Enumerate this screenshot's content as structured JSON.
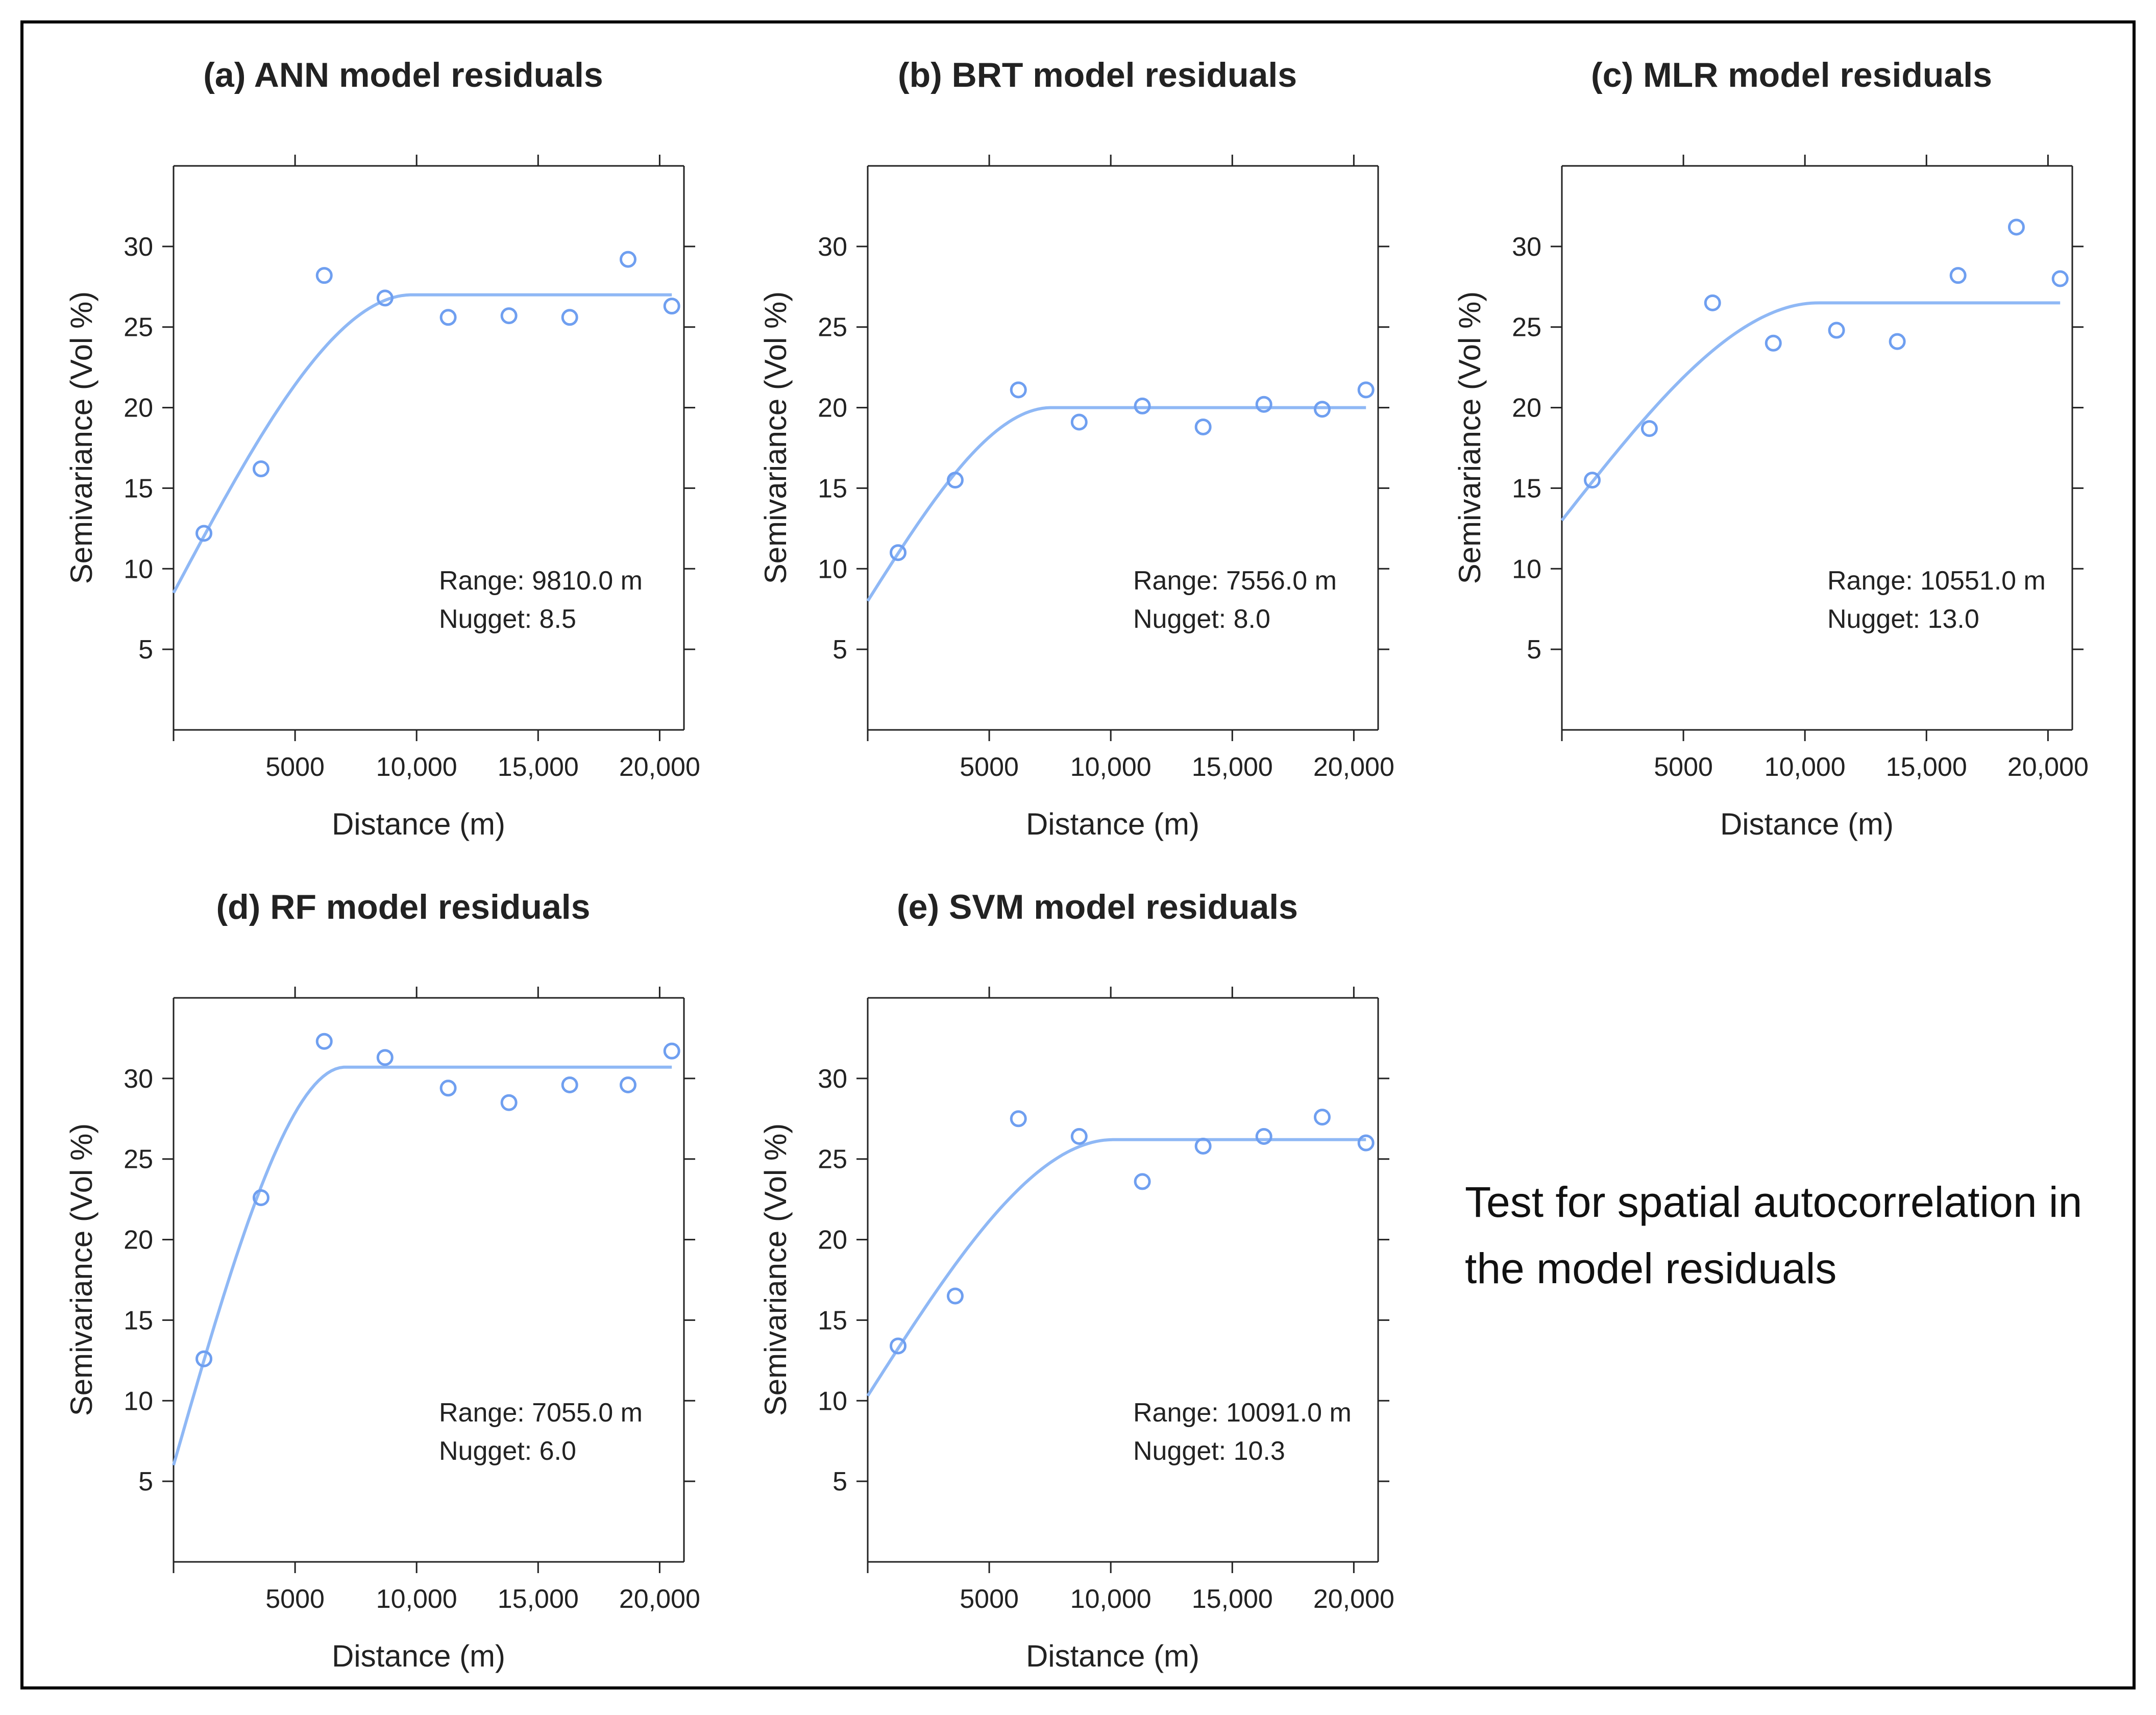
{
  "caption": {
    "line1": "Test for spatial autocorrelation in",
    "line2": "the model residuals"
  },
  "style": {
    "line_color": "#8fb8f5",
    "point_color": "#6f9ff0",
    "axis_color": "#222222"
  },
  "chart_data": [
    {
      "type": "scatter",
      "title": "(a) ANN model residuals",
      "xlabel": "Distance (m)",
      "ylabel": "Semivariance (Vol %)",
      "xlim": [
        0,
        21000
      ],
      "ylim": [
        0,
        35
      ],
      "xticks": [
        5000,
        10000,
        15000,
        20000
      ],
      "xtick_labels": [
        "5000",
        "10,000",
        "15,000",
        "20,000"
      ],
      "yticks": [
        5,
        10,
        15,
        20,
        25,
        30
      ],
      "points": {
        "x": [
          1250,
          3600,
          6200,
          8700,
          11300,
          13800,
          16300,
          18700,
          20500
        ],
        "y": [
          12.2,
          16.2,
          28.2,
          26.8,
          25.6,
          25.7,
          25.6,
          29.2,
          26.3
        ]
      },
      "model": {
        "nugget": 8.5,
        "sill": 27.0,
        "range": 9810
      },
      "annotation": {
        "range_text": "Range: 9810.0  m",
        "nugget_text": "Nugget: 8.5"
      }
    },
    {
      "type": "scatter",
      "title": "(b) BRT model residuals",
      "xlabel": "Distance (m)",
      "ylabel": "Semivariance (Vol %)",
      "xlim": [
        0,
        21000
      ],
      "ylim": [
        0,
        35
      ],
      "xticks": [
        5000,
        10000,
        15000,
        20000
      ],
      "xtick_labels": [
        "5000",
        "10,000",
        "15,000",
        "20,000"
      ],
      "yticks": [
        5,
        10,
        15,
        20,
        25,
        30
      ],
      "points": {
        "x": [
          1250,
          3600,
          6200,
          8700,
          11300,
          13800,
          16300,
          18700,
          20500
        ],
        "y": [
          11.0,
          15.5,
          21.1,
          19.1,
          20.1,
          18.8,
          20.2,
          19.9,
          21.1
        ]
      },
      "model": {
        "nugget": 8.0,
        "sill": 20.0,
        "range": 7556
      },
      "annotation": {
        "range_text": "Range: 7556.0  m",
        "nugget_text": "Nugget: 8.0"
      }
    },
    {
      "type": "scatter",
      "title": "(c) MLR model residuals",
      "xlabel": "Distance (m)",
      "ylabel": "Semivariance (Vol %)",
      "xlim": [
        0,
        21000
      ],
      "ylim": [
        0,
        35
      ],
      "xticks": [
        5000,
        10000,
        15000,
        20000
      ],
      "xtick_labels": [
        "5000",
        "10,000",
        "15,000",
        "20,000"
      ],
      "yticks": [
        5,
        10,
        15,
        20,
        25,
        30
      ],
      "points": {
        "x": [
          1250,
          3600,
          6200,
          8700,
          11300,
          13800,
          16300,
          18700,
          20500
        ],
        "y": [
          15.5,
          18.7,
          26.5,
          24.0,
          24.8,
          24.1,
          28.2,
          31.2,
          28.0
        ]
      },
      "model": {
        "nugget": 13.0,
        "sill": 26.5,
        "range": 10551
      },
      "annotation": {
        "range_text": "Range: 10551.0  m",
        "nugget_text": "Nugget: 13.0"
      }
    },
    {
      "type": "scatter",
      "title": "(d) RF model residuals",
      "xlabel": "Distance (m)",
      "ylabel": "Semivariance (Vol %)",
      "xlim": [
        0,
        21000
      ],
      "ylim": [
        0,
        35
      ],
      "xticks": [
        5000,
        10000,
        15000,
        20000
      ],
      "xtick_labels": [
        "5000",
        "10,000",
        "15,000",
        "20,000"
      ],
      "yticks": [
        5,
        10,
        15,
        20,
        25,
        30
      ],
      "points": {
        "x": [
          1250,
          3600,
          6200,
          8700,
          11300,
          13800,
          16300,
          18700,
          20500
        ],
        "y": [
          12.6,
          22.6,
          32.3,
          31.3,
          29.4,
          28.5,
          29.6,
          29.6,
          31.7
        ]
      },
      "model": {
        "nugget": 6.0,
        "sill": 30.7,
        "range": 7055
      },
      "annotation": {
        "range_text": "Range: 7055.0  m",
        "nugget_text": "Nugget: 6.0"
      }
    },
    {
      "type": "scatter",
      "title": "(e) SVM model residuals",
      "xlabel": "Distance (m)",
      "ylabel": "Semivariance (Vol %)",
      "xlim": [
        0,
        21000
      ],
      "ylim": [
        0,
        35
      ],
      "xticks": [
        5000,
        10000,
        15000,
        20000
      ],
      "xtick_labels": [
        "5000",
        "10,000",
        "15,000",
        "20,000"
      ],
      "yticks": [
        5,
        10,
        15,
        20,
        25,
        30
      ],
      "points": {
        "x": [
          1250,
          3600,
          6200,
          8700,
          11300,
          13800,
          16300,
          18700,
          20500
        ],
        "y": [
          13.4,
          16.5,
          27.5,
          26.4,
          23.6,
          25.8,
          26.4,
          27.6,
          26.0
        ]
      },
      "model": {
        "nugget": 10.3,
        "sill": 26.2,
        "range": 10091
      },
      "annotation": {
        "range_text": "Range: 10091.0  m",
        "nugget_text": "Nugget: 10.3"
      }
    }
  ]
}
